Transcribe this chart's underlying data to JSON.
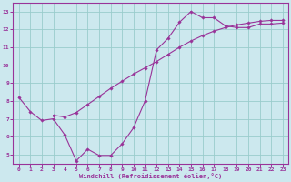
{
  "xlabel": "Windchill (Refroidissement éolien,°C)",
  "bg_color": "#cce8ee",
  "line_color": "#993399",
  "grid_color": "#99cccc",
  "xlim": [
    -0.5,
    23.5
  ],
  "ylim": [
    4.5,
    13.5
  ],
  "xticks": [
    0,
    1,
    2,
    3,
    4,
    5,
    6,
    7,
    8,
    9,
    10,
    11,
    12,
    13,
    14,
    15,
    16,
    17,
    18,
    19,
    20,
    21,
    22,
    23
  ],
  "yticks": [
    5,
    6,
    7,
    8,
    9,
    10,
    11,
    12,
    13
  ],
  "line1_x": [
    0,
    1,
    2,
    3,
    4,
    5,
    6,
    7,
    8,
    9,
    10,
    11,
    12,
    13,
    14,
    15,
    16,
    17,
    18,
    19,
    20,
    21,
    22,
    23
  ],
  "line1_y": [
    8.2,
    7.4,
    6.9,
    7.0,
    6.1,
    4.65,
    5.3,
    4.95,
    4.95,
    5.6,
    6.5,
    8.0,
    10.85,
    11.5,
    12.4,
    13.0,
    12.65,
    12.65,
    12.2,
    12.1,
    12.1,
    12.3,
    12.3,
    12.35
  ],
  "line2_x": [
    3,
    4,
    5,
    6,
    7,
    8,
    9,
    10,
    11,
    12,
    13,
    14,
    15,
    16,
    17,
    18,
    19,
    20,
    21,
    22,
    23
  ],
  "line2_y": [
    7.2,
    7.1,
    7.35,
    7.8,
    8.25,
    8.7,
    9.1,
    9.5,
    9.85,
    10.2,
    10.6,
    11.0,
    11.35,
    11.65,
    11.9,
    12.1,
    12.25,
    12.35,
    12.45,
    12.5,
    12.5
  ]
}
